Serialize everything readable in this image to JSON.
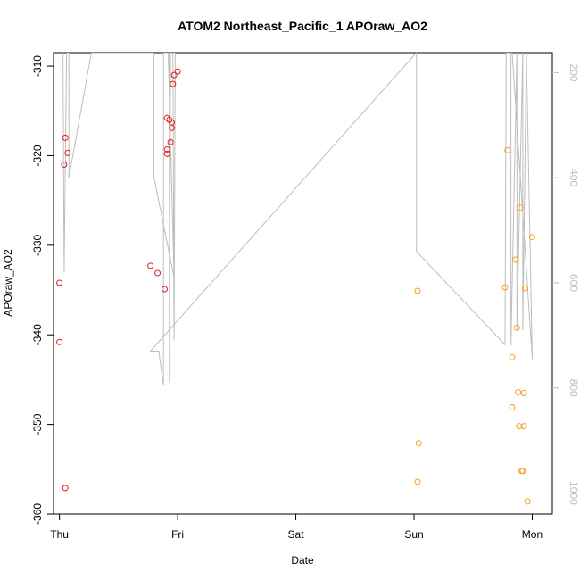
{
  "chart_data": {
    "type": "scatter",
    "title": "ATOM2 Northeast_Pacific_1 APOraw_AO2",
    "xlabel": "Date",
    "ylabel": "APOraw_AO2",
    "x_ticks": [
      "Thu",
      "Fri",
      "Sat",
      "Sun",
      "Mon"
    ],
    "xlim": [
      -0.05,
      4.17
    ],
    "ylim": [
      -360,
      -308.5
    ],
    "y_ticks": [
      -310,
      -320,
      -330,
      -340,
      -350,
      -360
    ],
    "y2_ticks": [
      200,
      400,
      600,
      800,
      1000
    ],
    "y2lim": [
      162,
      1040
    ],
    "grid": false,
    "colors": {
      "series_red": "#e31a1c",
      "series_orange": "#ff9a1a",
      "secondary_line": "#bdbdbd"
    },
    "series": [
      {
        "color": "series_red",
        "points": [
          [
            0.0,
            -334.2
          ],
          [
            0.0,
            -340.8
          ],
          [
            0.04,
            -321.0
          ],
          [
            0.05,
            -318.0
          ],
          [
            0.05,
            -357.1
          ],
          [
            0.07,
            -319.7
          ],
          [
            0.77,
            -332.3
          ],
          [
            0.83,
            -333.1
          ],
          [
            0.89,
            -334.9
          ],
          [
            0.91,
            -319.3
          ],
          [
            0.91,
            -319.8
          ],
          [
            0.91,
            -315.8
          ],
          [
            0.93,
            -316.0
          ],
          [
            0.94,
            -318.5
          ],
          [
            0.95,
            -316.3
          ],
          [
            0.95,
            -316.9
          ],
          [
            0.96,
            -312.0
          ],
          [
            0.97,
            -311.0
          ],
          [
            1.0,
            -310.6
          ]
        ]
      },
      {
        "color": "series_orange",
        "points": [
          [
            3.03,
            -335.1
          ],
          [
            3.03,
            -356.4
          ],
          [
            3.04,
            -352.1
          ],
          [
            3.77,
            -334.7
          ],
          [
            3.79,
            -319.4
          ],
          [
            3.83,
            -342.5
          ],
          [
            3.83,
            -348.1
          ],
          [
            3.86,
            -331.6
          ],
          [
            3.87,
            -339.2
          ],
          [
            3.88,
            -346.4
          ],
          [
            3.89,
            -350.2
          ],
          [
            3.9,
            -325.8
          ],
          [
            3.91,
            -355.2
          ],
          [
            3.92,
            -355.2
          ],
          [
            3.93,
            -346.5
          ],
          [
            3.93,
            -350.2
          ],
          [
            3.94,
            -334.8
          ],
          [
            3.96,
            -358.6
          ],
          [
            4.0,
            -329.1
          ]
        ]
      }
    ],
    "secondary_line": {
      "color": "secondary_line",
      "points": [
        [
          0.03,
          162
        ],
        [
          0.04,
          580
        ],
        [
          0.06,
          162
        ],
        [
          0.08,
          162
        ],
        [
          0.08,
          400
        ],
        [
          0.27,
          162
        ],
        [
          0.8,
          162
        ],
        [
          0.8,
          400
        ],
        [
          0.97,
          590
        ],
        [
          0.92,
          162
        ],
        [
          0.93,
          162
        ],
        [
          0.93,
          790
        ],
        [
          0.94,
          162
        ],
        [
          0.96,
          162
        ],
        [
          0.97,
          710
        ],
        [
          0.98,
          162
        ],
        [
          0.88,
          162
        ],
        [
          0.88,
          795
        ],
        [
          0.84,
          730
        ],
        [
          0.77,
          730
        ],
        [
          3.02,
          162
        ],
        [
          3.02,
          540
        ],
        [
          3.77,
          718
        ],
        [
          3.78,
          162
        ],
        [
          3.82,
          162
        ],
        [
          3.82,
          720
        ],
        [
          3.87,
          162
        ],
        [
          3.87,
          690
        ],
        [
          3.92,
          162
        ],
        [
          3.92,
          690
        ],
        [
          3.95,
          162
        ],
        [
          4.0,
          745
        ],
        [
          3.83,
          162
        ]
      ]
    }
  }
}
